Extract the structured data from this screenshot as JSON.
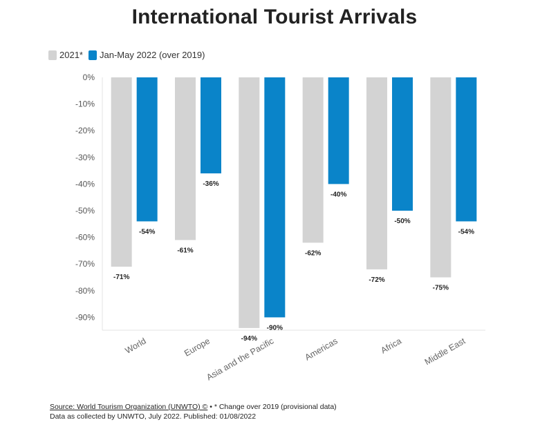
{
  "title": "International Tourist Arrivals",
  "legend": [
    {
      "label": "2021*",
      "color": "#d3d3d3"
    },
    {
      "label": "Jan-May 2022 (over 2019)",
      "color": "#0a84c9"
    }
  ],
  "footer": {
    "source_link": "Source: World Tourism Organization (UNWTO) ©",
    "source_note": " • * Change over 2019 (provisional data)",
    "line2": "Data as collected by UNWTO, July 2022. Published: 01/08/2022"
  },
  "chart_data": {
    "type": "bar",
    "title": "International Tourist Arrivals",
    "xlabel": "",
    "ylabel": "",
    "categories": [
      "World",
      "Europe",
      "Asia and the Pacific",
      "Americas",
      "Africa",
      "Middle East"
    ],
    "series": [
      {
        "name": "2021*",
        "color": "#d3d3d3",
        "values": [
          -71,
          -61,
          -94,
          -62,
          -72,
          -75
        ]
      },
      {
        "name": "Jan-May 2022 (over 2019)",
        "color": "#0a84c9",
        "values": [
          -54,
          -36,
          -90,
          -40,
          -50,
          -54
        ]
      }
    ],
    "ylim": [
      -95,
      0
    ],
    "yticks": [
      0,
      -10,
      -20,
      -30,
      -40,
      -50,
      -60,
      -70,
      -80,
      -90
    ],
    "ytick_labels": [
      "0%",
      "-10%",
      "-20%",
      "-30%",
      "-40%",
      "-50%",
      "-60%",
      "-70%",
      "-80%",
      "-90%"
    ],
    "data_labels": [
      [
        "-71%",
        "-61%",
        "-94%",
        "-62%",
        "-72%",
        "-75%"
      ],
      [
        "-54%",
        "-36%",
        "-90%",
        "-40%",
        "-50%",
        "-54%"
      ]
    ],
    "legend_position": "top-left",
    "grid": false
  }
}
